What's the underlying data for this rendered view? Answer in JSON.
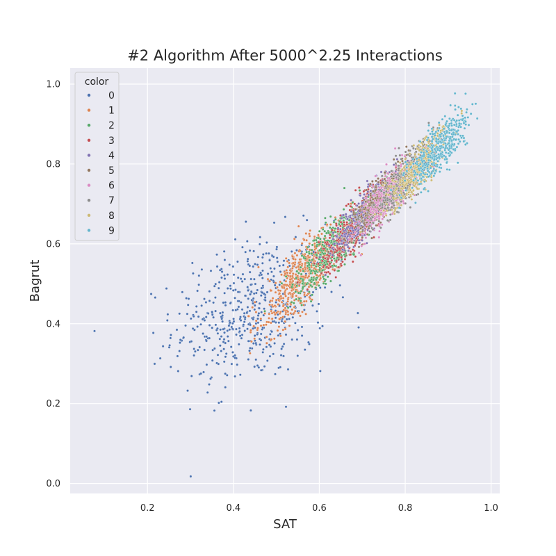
{
  "chart_data": {
    "type": "scatter",
    "title": "#2 Algorithm After 5000^2.25 Interactions",
    "xlabel": "SAT",
    "ylabel": "Bagrut",
    "xlim": [
      0.02,
      1.02
    ],
    "ylim": [
      -0.025,
      1.04
    ],
    "xticks": [
      "0.2",
      "0.4",
      "0.6",
      "0.8",
      "1.0"
    ],
    "xtick_values": [
      0.2,
      0.4,
      0.6,
      0.8,
      1.0
    ],
    "yticks": [
      "0.0",
      "0.2",
      "0.4",
      "0.6",
      "0.8",
      "1.0"
    ],
    "ytick_values": [
      0.0,
      0.2,
      0.4,
      0.6,
      0.8,
      1.0
    ],
    "grid": true,
    "legend": {
      "title": "color",
      "placement": "top-left"
    },
    "series": [
      {
        "name": "0",
        "color": "#4c72b0",
        "cx": 0.44,
        "cy": 0.43,
        "sx": 0.09,
        "sy": 0.09,
        "n": 520
      },
      {
        "name": "1",
        "color": "#dd8452",
        "cx": 0.56,
        "cy": 0.52,
        "sx": 0.055,
        "sy": 0.07,
        "n": 520
      },
      {
        "name": "2",
        "color": "#55a868",
        "cx": 0.63,
        "cy": 0.59,
        "sx": 0.045,
        "sy": 0.065,
        "n": 460
      },
      {
        "name": "3",
        "color": "#c44e52",
        "cx": 0.68,
        "cy": 0.64,
        "sx": 0.04,
        "sy": 0.06,
        "n": 420
      },
      {
        "name": "4",
        "color": "#8172b3",
        "cx": 0.71,
        "cy": 0.68,
        "sx": 0.035,
        "sy": 0.055,
        "n": 400
      },
      {
        "name": "5",
        "color": "#937860",
        "cx": 0.74,
        "cy": 0.71,
        "sx": 0.035,
        "sy": 0.055,
        "n": 400
      },
      {
        "name": "6",
        "color": "#da8bc3",
        "cx": 0.77,
        "cy": 0.73,
        "sx": 0.035,
        "sy": 0.055,
        "n": 400
      },
      {
        "name": "7",
        "color": "#8c8c8c",
        "cx": 0.8,
        "cy": 0.76,
        "sx": 0.035,
        "sy": 0.055,
        "n": 400
      },
      {
        "name": "8",
        "color": "#ccb974",
        "cx": 0.83,
        "cy": 0.79,
        "sx": 0.035,
        "sy": 0.055,
        "n": 400
      },
      {
        "name": "9",
        "color": "#64b5cd",
        "cx": 0.88,
        "cy": 0.84,
        "sx": 0.04,
        "sy": 0.055,
        "n": 400
      }
    ]
  }
}
